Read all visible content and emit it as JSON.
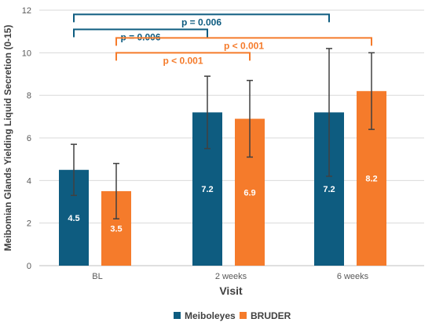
{
  "chart_data": {
    "type": "bar",
    "ylabel": "Meibomian Glands Yielding Liquid Secretion (0-15)",
    "xlabel": "Visit",
    "ylim": [
      0,
      12
    ],
    "yticks": [
      0,
      2,
      4,
      6,
      8,
      10,
      12
    ],
    "grid": true,
    "legend_position": "bottom",
    "categories": [
      "BL",
      "2 weeks",
      "6 weeks"
    ],
    "series": [
      {
        "name": "Meiboleyes",
        "color": "#0e5c80",
        "values": [
          4.5,
          7.2,
          7.2
        ],
        "data_labels": [
          "4.5",
          "7.2",
          "7.2"
        ],
        "error_low": [
          3.3,
          5.5,
          4.2
        ],
        "error_high": [
          5.7,
          8.9,
          10.2
        ]
      },
      {
        "name": "BRUDER",
        "color": "#f57b2b",
        "values": [
          3.5,
          6.9,
          8.2
        ],
        "data_labels": [
          "3.5",
          "6.9",
          "8.2"
        ],
        "error_low": [
          2.2,
          5.1,
          6.4
        ],
        "error_high": [
          4.8,
          8.7,
          10.0
        ]
      }
    ],
    "annotations": [
      {
        "text": "p = 0.006",
        "color": "#0e5c80",
        "from": {
          "category": 0,
          "series": 0
        },
        "to": {
          "category": 2,
          "series": 0
        },
        "level": 11.8
      },
      {
        "text": "p = 0.006",
        "color": "#0e5c80",
        "from": {
          "category": 0,
          "series": 0
        },
        "to": {
          "category": 1,
          "series": 0
        },
        "level": 11.1
      },
      {
        "text": "p < 0.001",
        "color": "#f57b2b",
        "from": {
          "category": 0,
          "series": 1
        },
        "to": {
          "category": 2,
          "series": 1
        },
        "level": 10.7
      },
      {
        "text": "p < 0.001",
        "color": "#f57b2b",
        "from": {
          "category": 0,
          "series": 1
        },
        "to": {
          "category": 1,
          "series": 1
        },
        "level": 10.0
      }
    ]
  }
}
